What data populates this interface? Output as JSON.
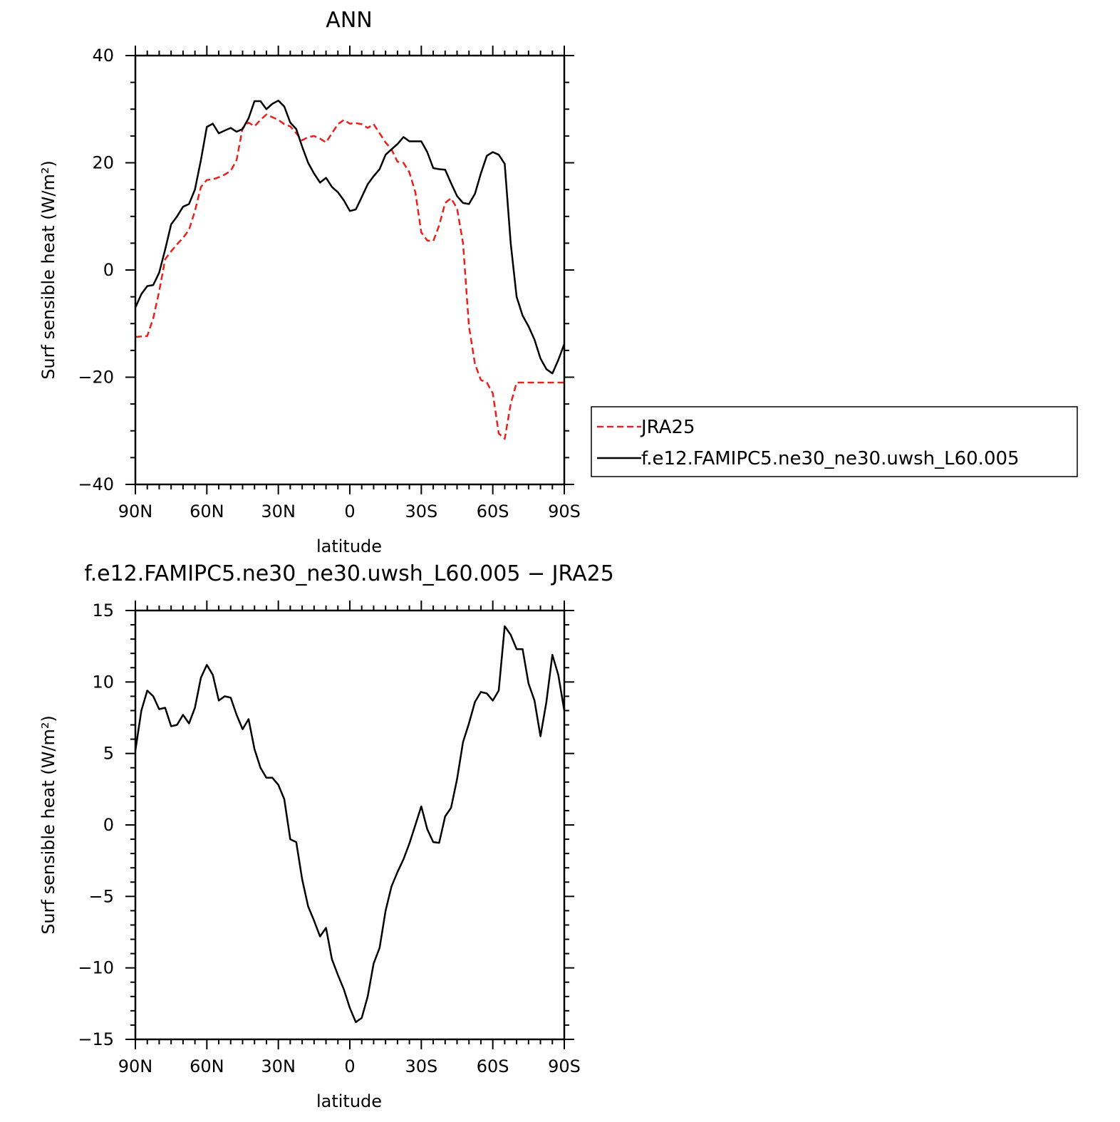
{
  "chart_data": [
    {
      "type": "line",
      "title": "ANN",
      "xlabel": "latitude",
      "ylabel": "Surf sensible heat (W/m²)",
      "xlim": [
        -90,
        90
      ],
      "ylim": [
        -40,
        40
      ],
      "x_tick_labels": [
        "90N",
        "60N",
        "30N",
        "0",
        "30S",
        "60S",
        "90S"
      ],
      "y_tick_labels": [
        "40",
        "20",
        "0",
        "−20",
        "−40"
      ],
      "legend_position": "right",
      "x": [
        -90,
        -87.5,
        -85,
        -82.5,
        -80,
        -77.5,
        -75,
        -72.5,
        -70,
        -67.5,
        -65,
        -62.5,
        -60,
        -57.5,
        -55,
        -52.5,
        -50,
        -47.5,
        -45,
        -42.5,
        -40,
        -37.5,
        -35,
        -32.5,
        -30,
        -27.5,
        -25,
        -22.5,
        -20,
        -17.5,
        -15,
        -12.5,
        -10,
        -7.5,
        -5,
        -2.5,
        0,
        2.5,
        5,
        7.5,
        10,
        12.5,
        15,
        17.5,
        20,
        22.5,
        25,
        27.5,
        30,
        32.5,
        35,
        37.5,
        40,
        42.5,
        45,
        47.5,
        50,
        52.5,
        55,
        57.5,
        60,
        62.5,
        65,
        67.5,
        70,
        72.5,
        75,
        77.5,
        80,
        82.5,
        85,
        87.5,
        90
      ],
      "series": [
        {
          "name": "JRA25",
          "color": "#e8211c",
          "dash": true,
          "values": [
            -12.5,
            -12.4,
            -12.3,
            -9,
            -4,
            2,
            3.5,
            4.8,
            6,
            7.5,
            11,
            15.5,
            16.8,
            16.9,
            17.3,
            17.8,
            18.5,
            20.5,
            26.5,
            27.5,
            26.8,
            28,
            29,
            28.5,
            28,
            27.2,
            26.8,
            25.5,
            24.2,
            24.8,
            25,
            24.5,
            23.8,
            25.5,
            27.2,
            28,
            27.3,
            27.4,
            27.2,
            26.5,
            27.2,
            25.5,
            23.8,
            22.5,
            20.2,
            20,
            18.2,
            14.5,
            7,
            5.5,
            5.4,
            8.3,
            12.5,
            13.4,
            11.5,
            5,
            -10.5,
            -17.5,
            -20.5,
            -21,
            -23,
            -30.5,
            -31.5,
            -25,
            -21,
            -21,
            -21,
            -21,
            -21,
            -21,
            -21,
            -21,
            -21
          ]
        },
        {
          "name": "f.e12.FAMIPC5.ne30_ne30.uwsh_L60.005",
          "color": "#000000",
          "dash": false,
          "values": [
            -7,
            -4.5,
            -3,
            -2.8,
            -0.5,
            3.8,
            8.5,
            10,
            11.8,
            12.3,
            15,
            20.5,
            26.7,
            27.3,
            25.5,
            26,
            26.5,
            25.8,
            26.3,
            28.3,
            31.5,
            31.5,
            30,
            31,
            31.6,
            30.5,
            27.5,
            26.3,
            23,
            20,
            18,
            16.3,
            17.2,
            15.5,
            14.5,
            13,
            11,
            11.3,
            13.6,
            16,
            17.5,
            18.8,
            21.5,
            22.5,
            23.5,
            24.8,
            24,
            24,
            24,
            22,
            19,
            18.8,
            18.7,
            16.2,
            13.8,
            12.5,
            12.3,
            14.2,
            18,
            21.3,
            22,
            21.5,
            19.8,
            5,
            -5,
            -8.5,
            -10.5,
            -13,
            -16.5,
            -18.5,
            -19.3,
            -16.8,
            -13.8
          ]
        }
      ]
    },
    {
      "type": "line",
      "title": "f.e12.FAMIPC5.ne30_ne30.uwsh_L60.005 − JRA25",
      "xlabel": "latitude",
      "ylabel": "Surf sensible heat (W/m²)",
      "xlim": [
        -90,
        90
      ],
      "ylim": [
        -15,
        15
      ],
      "x_tick_labels": [
        "90N",
        "60N",
        "30N",
        "0",
        "30S",
        "60S",
        "90S"
      ],
      "y_tick_labels": [
        "15",
        "10",
        "5",
        "0",
        "−5",
        "−10",
        "−15"
      ],
      "x": [
        -90,
        -87.5,
        -85,
        -82.5,
        -80,
        -77.5,
        -75,
        -72.5,
        -70,
        -67.5,
        -65,
        -62.5,
        -60,
        -57.5,
        -55,
        -52.5,
        -50,
        -47.5,
        -45,
        -42.5,
        -40,
        -37.5,
        -35,
        -32.5,
        -30,
        -27.5,
        -25,
        -22.5,
        -20,
        -17.5,
        -15,
        -12.5,
        -10,
        -7.5,
        -5,
        -2.5,
        0,
        2.5,
        5,
        7.5,
        10,
        12.5,
        15,
        17.5,
        20,
        22.5,
        25,
        27.5,
        30,
        32.5,
        35,
        37.5,
        40,
        42.5,
        45,
        47.5,
        50,
        52.5,
        55,
        57.5,
        60,
        62.5,
        65,
        67.5,
        70,
        72.5,
        75,
        77.5,
        80,
        82.5,
        85,
        87.5,
        90
      ],
      "series": [
        {
          "color": "#000000",
          "values": [
            5.2,
            8,
            9.4,
            9,
            8.1,
            8.2,
            6.9,
            7,
            7.7,
            7.1,
            8.2,
            10.3,
            11.2,
            10.5,
            8.7,
            9,
            8.9,
            7.7,
            6.7,
            7.4,
            5.3,
            4,
            3.3,
            3.3,
            2.8,
            1.8,
            -1,
            -1.2,
            -3.8,
            -5.7,
            -6.7,
            -7.8,
            -7.2,
            -9.4,
            -10.5,
            -11.5,
            -12.8,
            -13.8,
            -13.5,
            -12,
            -9.7,
            -8.6,
            -6,
            -4.3,
            -3.3,
            -2.4,
            -1.3,
            0,
            1.3,
            -0.3,
            -1.2,
            -1.25,
            0.6,
            1.2,
            3.2,
            5.8,
            7.1,
            8.6,
            9.3,
            9.2,
            8.7,
            9.4,
            13.9,
            13.3,
            12.3,
            12.3,
            9.9,
            8.7,
            6.2,
            8.6,
            11.9,
            10.5,
            8
          ]
        }
      ]
    }
  ]
}
